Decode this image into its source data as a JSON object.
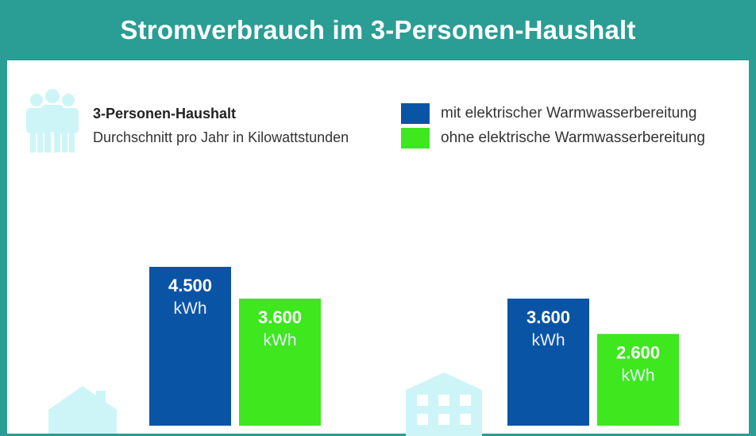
{
  "title": "Stromverbrauch im 3-Personen-Haushalt",
  "subtitle": {
    "line1": "3-Personen-Haushalt",
    "line2": "Durchschnitt pro Jahr in Kilowattstunden"
  },
  "legend": [
    {
      "label": "mit elektrischer Warmwasserbereitung",
      "color": "#0a54a6"
    },
    {
      "label": "ohne elektrische Warmwasserbereitung",
      "color": "#3ee71e"
    }
  ],
  "colors": {
    "background": "#2a9d94",
    "icon": "#cdf5f7"
  },
  "icons": [
    "people-icon",
    "house-icon",
    "apartment-building-icon"
  ],
  "chart_data": {
    "type": "bar",
    "categories": [
      "house-icon",
      "apartment-building-icon"
    ],
    "unit": "kWh",
    "series": [
      {
        "name": "mit elektrischer Warmwasserbereitung",
        "color": "#0a54a6",
        "values": [
          4500,
          3600
        ],
        "labels": [
          "4.500",
          "3.600"
        ]
      },
      {
        "name": "ohne elektrische Warmwasserbereitung",
        "color": "#3ee71e",
        "values": [
          3600,
          2600
        ],
        "labels": [
          "3.600",
          "2.600"
        ]
      }
    ]
  }
}
